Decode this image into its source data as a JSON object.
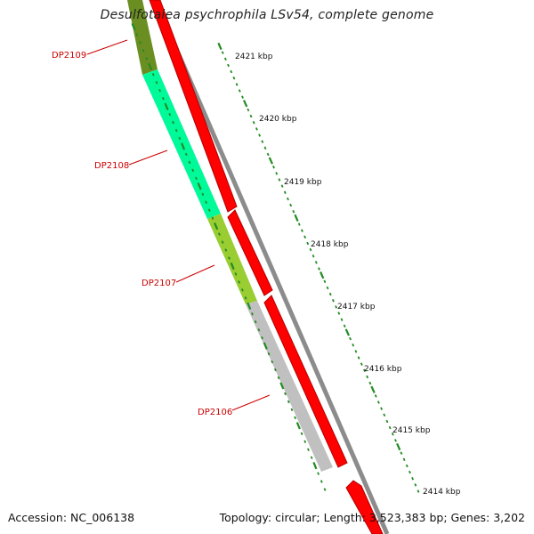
{
  "title": "Desulfotalea psychrophila LSv54, complete genome",
  "footer": {
    "accession": "Accession: NC_006138",
    "summary": "Topology: circular; Length: 3,523,383 bp; Genes: 3,202"
  },
  "scale_labels": [
    "2421 kbp",
    "2420 kbp",
    "2419 kbp",
    "2418 kbp",
    "2417 kbp",
    "2416 kbp",
    "2415 kbp",
    "2414 kbp"
  ],
  "genes": [
    {
      "name": "DP2109",
      "color": "#6b8e23"
    },
    {
      "name": "DP2108",
      "color": "#00fa9a"
    },
    {
      "name": "DP2107",
      "color": "#9acd32"
    },
    {
      "name": "DP2106",
      "color": "#c0c0c0"
    }
  ],
  "colors": {
    "forward_strand": "#ff0000",
    "backbone": "#8c8c8c",
    "ticks": "#228b22",
    "gene_labels": "#cc0000"
  }
}
